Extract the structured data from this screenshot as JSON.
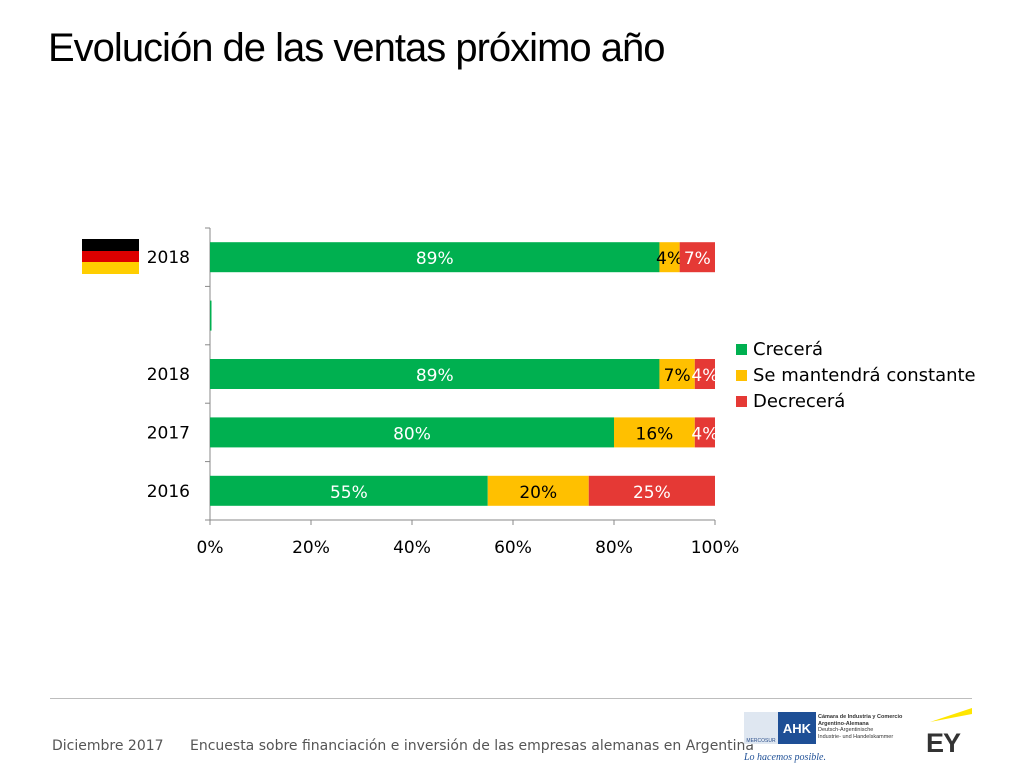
{
  "slide": {
    "title": "Evolución de las ventas próximo año"
  },
  "flag": {
    "name": "germany-flag",
    "colors": [
      "#000000",
      "#dd0000",
      "#ffce00"
    ]
  },
  "chart_data": {
    "type": "bar",
    "orientation": "horizontal",
    "stacked": true,
    "percent": true,
    "categories": [
      "2018",
      "",
      "2018",
      "2017",
      "2016"
    ],
    "series": [
      {
        "name": "Crecerá",
        "color": "#00b050",
        "label_color": "#ffffff",
        "values": [
          89,
          0,
          89,
          80,
          55
        ],
        "labels": [
          "89%",
          "",
          "89%",
          "80%",
          "55%"
        ]
      },
      {
        "name": "Se mantendrá constante",
        "color": "#ffc000",
        "label_color": "#000000",
        "values": [
          4,
          0,
          7,
          16,
          20
        ],
        "labels": [
          "4%",
          "",
          "7%",
          "16%",
          "20%"
        ]
      },
      {
        "name": "Decrecerá",
        "color": "#e53935",
        "label_color": "#ffffff",
        "values": [
          7,
          0,
          4,
          4,
          25
        ],
        "labels": [
          "7%",
          "",
          "4%",
          "4%",
          "25%"
        ]
      }
    ],
    "xlim": [
      0,
      100
    ],
    "xticks": [
      "0%",
      "20%",
      "40%",
      "60%",
      "80%",
      "100%"
    ],
    "legend_position": "right",
    "grid": false
  },
  "footer": {
    "date": "Diciembre 2017",
    "subtitle": "Encuesta sobre financiación e inversión de las empresas alemanas en Argentina"
  },
  "ahk": {
    "mark": "AHK",
    "mercosur": "MERCOSUR",
    "lines": [
      "Cámara de Industria y Comercio",
      "Argentino-Alemana",
      "Deutsch-Argentinische",
      "Industrie- und Handelskammer"
    ],
    "tagline": "Lo hacemos posible."
  },
  "ey": {
    "mark": "EY",
    "accent": "#ffe600"
  }
}
